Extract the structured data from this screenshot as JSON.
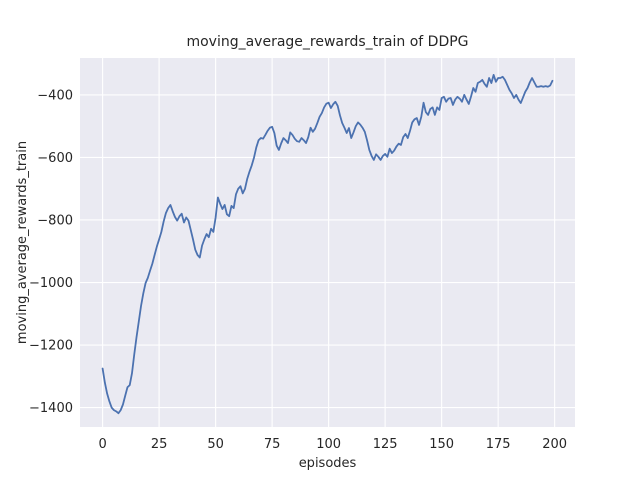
{
  "chart_data": {
    "type": "line",
    "title": "moving_average_rewards_train of DDPG",
    "xlabel": "episodes",
    "ylabel": "moving_average_rewards_train",
    "x_tick_values": [
      0,
      25,
      50,
      75,
      100,
      125,
      150,
      175,
      200
    ],
    "x_tick_labels": [
      "0",
      "25",
      "50",
      "75",
      "100",
      "125",
      "150",
      "175",
      "200"
    ],
    "y_tick_values": [
      -400,
      -600,
      -800,
      -1000,
      -1200,
      -1400
    ],
    "y_tick_labels": [
      "−400",
      "−600",
      "−800",
      "−1000",
      "−1200",
      "−1400"
    ],
    "xlim": [
      -10,
      209
    ],
    "ylim": [
      -1462,
      -282
    ],
    "grid": true,
    "legend_position": "none",
    "style": {
      "figure_bg": "#ffffff",
      "axes_bg": "#eaeaf2",
      "grid_color": "#ffffff",
      "text_color": "#262626",
      "line_color": "#4c72b0",
      "line_width": 1.8
    },
    "series": [
      {
        "name": "moving_average_rewards_train",
        "x_start": 0,
        "x_step": 1,
        "values": [
          -1275,
          -1320,
          -1355,
          -1380,
          -1400,
          -1408,
          -1412,
          -1418,
          -1408,
          -1390,
          -1362,
          -1335,
          -1328,
          -1290,
          -1230,
          -1175,
          -1125,
          -1075,
          -1035,
          -1002,
          -985,
          -962,
          -940,
          -912,
          -885,
          -862,
          -838,
          -805,
          -778,
          -762,
          -752,
          -772,
          -790,
          -802,
          -788,
          -780,
          -808,
          -792,
          -802,
          -832,
          -862,
          -895,
          -912,
          -920,
          -882,
          -862,
          -845,
          -855,
          -828,
          -838,
          -792,
          -728,
          -748,
          -765,
          -752,
          -782,
          -788,
          -755,
          -762,
          -718,
          -700,
          -692,
          -715,
          -700,
          -668,
          -645,
          -625,
          -600,
          -568,
          -545,
          -538,
          -540,
          -528,
          -515,
          -505,
          -502,
          -522,
          -562,
          -576,
          -555,
          -538,
          -545,
          -554,
          -520,
          -528,
          -540,
          -548,
          -550,
          -538,
          -545,
          -554,
          -535,
          -505,
          -518,
          -508,
          -490,
          -470,
          -458,
          -440,
          -428,
          -425,
          -442,
          -430,
          -422,
          -435,
          -465,
          -490,
          -505,
          -522,
          -506,
          -538,
          -520,
          -500,
          -488,
          -495,
          -505,
          -518,
          -545,
          -576,
          -595,
          -608,
          -590,
          -598,
          -608,
          -595,
          -589,
          -598,
          -572,
          -586,
          -578,
          -565,
          -556,
          -560,
          -535,
          -525,
          -538,
          -515,
          -488,
          -478,
          -474,
          -496,
          -470,
          -425,
          -455,
          -464,
          -445,
          -440,
          -464,
          -440,
          -448,
          -410,
          -406,
          -422,
          -412,
          -410,
          -432,
          -415,
          -406,
          -412,
          -422,
          -400,
          -415,
          -429,
          -405,
          -378,
          -390,
          -362,
          -358,
          -352,
          -365,
          -374,
          -346,
          -362,
          -336,
          -358,
          -346,
          -346,
          -342,
          -352,
          -368,
          -384,
          -395,
          -410,
          -400,
          -415,
          -426,
          -408,
          -390,
          -378,
          -360,
          -346,
          -360,
          -374,
          -374,
          -372,
          -374,
          -372,
          -374,
          -370,
          -355
        ]
      }
    ]
  }
}
